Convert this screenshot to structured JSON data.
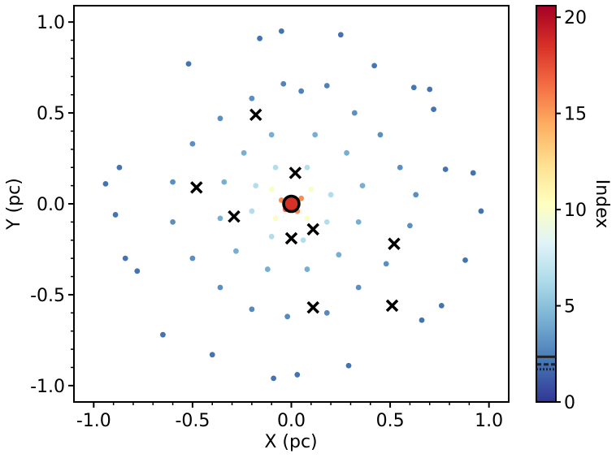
{
  "chart_data": {
    "type": "scatter",
    "title": "",
    "xlabel": "X (pc)",
    "ylabel": "Y (pc)",
    "xlim": [
      -1.1,
      1.1
    ],
    "ylim": [
      -1.09,
      1.09
    ],
    "x_ticks": [
      -1.0,
      -0.5,
      0.0,
      0.5,
      1.0
    ],
    "x_tick_labels": [
      "-1.0",
      "-0.5",
      "0.0",
      "0.5",
      "1.0"
    ],
    "y_ticks": [
      -1.0,
      -0.5,
      0.0,
      0.5,
      1.0
    ],
    "y_tick_labels": [
      "-1.0",
      "-0.5",
      "0.0",
      "0.5",
      "1.0"
    ],
    "grid": false,
    "point_color_scale": "RdYlBu_r (color = Index)",
    "colorbar": {
      "label": "Index",
      "range": [
        0,
        20.6
      ],
      "ticks": [
        0,
        5,
        10,
        15,
        20
      ],
      "tick_labels": [
        "0",
        "5",
        "10",
        "15",
        "20"
      ],
      "reference_lines": [
        {
          "value": 2.35,
          "style": "solid"
        },
        {
          "value": 1.95,
          "style": "dashed"
        },
        {
          "value": 1.7,
          "style": "dotted"
        }
      ]
    },
    "cross_markers": [
      {
        "x": 0.02,
        "y": 0.17
      },
      {
        "x": -0.18,
        "y": 0.49
      },
      {
        "x": -0.48,
        "y": 0.09
      },
      {
        "x": -0.29,
        "y": -0.07
      },
      {
        "x": 0.0,
        "y": -0.19
      },
      {
        "x": 0.11,
        "y": -0.14
      },
      {
        "x": 0.52,
        "y": -0.22
      },
      {
        "x": 0.51,
        "y": -0.56
      },
      {
        "x": 0.11,
        "y": -0.57
      }
    ],
    "central_marker": {
      "x": 0.0,
      "y": 0.0,
      "symbol": "circle",
      "fill": "#d73027"
    },
    "point_cloud_note": "about 900 points scattered in a disk of radius about 1 pc; Index decreases with distance from the centre",
    "points": [
      {
        "x": 0.62,
        "y": 0.64,
        "index": 2.1
      },
      {
        "x": 0.7,
        "y": 0.63,
        "index": 2.0
      },
      {
        "x": 0.42,
        "y": 0.76,
        "index": 2.1
      },
      {
        "x": -0.16,
        "y": 0.91,
        "index": 2.0
      },
      {
        "x": -0.05,
        "y": 0.95,
        "index": 2.0
      },
      {
        "x": 0.25,
        "y": 0.93,
        "index": 2.0
      },
      {
        "x": -0.52,
        "y": 0.77,
        "index": 2.0
      },
      {
        "x": -0.87,
        "y": 0.2,
        "index": 2.0
      },
      {
        "x": -0.94,
        "y": 0.11,
        "index": 2.0
      },
      {
        "x": -0.89,
        "y": -0.06,
        "index": 2.0
      },
      {
        "x": -0.84,
        "y": -0.3,
        "index": 2.0
      },
      {
        "x": -0.78,
        "y": -0.37,
        "index": 2.0
      },
      {
        "x": -0.65,
        "y": -0.72,
        "index": 2.0
      },
      {
        "x": -0.4,
        "y": -0.83,
        "index": 2.0
      },
      {
        "x": -0.09,
        "y": -0.96,
        "index": 2.0
      },
      {
        "x": 0.03,
        "y": -0.94,
        "index": 2.0
      },
      {
        "x": 0.29,
        "y": -0.89,
        "index": 2.0
      },
      {
        "x": 0.66,
        "y": -0.64,
        "index": 2.0
      },
      {
        "x": 0.76,
        "y": -0.56,
        "index": 2.0
      },
      {
        "x": 0.88,
        "y": -0.31,
        "index": 2.0
      },
      {
        "x": 0.96,
        "y": -0.04,
        "index": 2.0
      },
      {
        "x": 0.92,
        "y": 0.17,
        "index": 2.0
      },
      {
        "x": 0.78,
        "y": 0.19,
        "index": 2.0
      },
      {
        "x": 0.72,
        "y": 0.52,
        "index": 2.0
      },
      {
        "x": 0.05,
        "y": 0.62,
        "index": 2.5
      },
      {
        "x": -0.04,
        "y": 0.66,
        "index": 2.6
      },
      {
        "x": 0.18,
        "y": 0.65,
        "index": 2.5
      },
      {
        "x": 0.32,
        "y": 0.5,
        "index": 3.0
      },
      {
        "x": 0.45,
        "y": 0.38,
        "index": 3.0
      },
      {
        "x": 0.55,
        "y": 0.2,
        "index": 3.0
      },
      {
        "x": 0.63,
        "y": 0.05,
        "index": 3.0
      },
      {
        "x": 0.6,
        "y": -0.12,
        "index": 3.0
      },
      {
        "x": 0.48,
        "y": -0.33,
        "index": 3.0
      },
      {
        "x": 0.34,
        "y": -0.46,
        "index": 3.0
      },
      {
        "x": 0.18,
        "y": -0.6,
        "index": 2.8
      },
      {
        "x": -0.02,
        "y": -0.62,
        "index": 2.8
      },
      {
        "x": -0.2,
        "y": -0.58,
        "index": 2.8
      },
      {
        "x": -0.36,
        "y": -0.46,
        "index": 3.0
      },
      {
        "x": -0.5,
        "y": -0.3,
        "index": 3.0
      },
      {
        "x": -0.6,
        "y": -0.1,
        "index": 3.0
      },
      {
        "x": -0.6,
        "y": 0.12,
        "index": 3.0
      },
      {
        "x": -0.5,
        "y": 0.33,
        "index": 3.0
      },
      {
        "x": -0.36,
        "y": 0.47,
        "index": 3.0
      },
      {
        "x": -0.2,
        "y": 0.58,
        "index": 3.0
      },
      {
        "x": 0.12,
        "y": 0.38,
        "index": 4.2
      },
      {
        "x": -0.1,
        "y": 0.38,
        "index": 4.2
      },
      {
        "x": 0.28,
        "y": 0.28,
        "index": 4.2
      },
      {
        "x": 0.36,
        "y": 0.1,
        "index": 4.2
      },
      {
        "x": 0.34,
        "y": -0.1,
        "index": 4.2
      },
      {
        "x": 0.24,
        "y": -0.28,
        "index": 4.2
      },
      {
        "x": 0.08,
        "y": -0.36,
        "index": 4.2
      },
      {
        "x": -0.12,
        "y": -0.36,
        "index": 4.2
      },
      {
        "x": -0.28,
        "y": -0.26,
        "index": 4.2
      },
      {
        "x": -0.36,
        "y": -0.08,
        "index": 4.2
      },
      {
        "x": -0.34,
        "y": 0.12,
        "index": 4.2
      },
      {
        "x": -0.24,
        "y": 0.28,
        "index": 4.2
      },
      {
        "x": 0.08,
        "y": 0.2,
        "index": 6.5
      },
      {
        "x": -0.08,
        "y": 0.2,
        "index": 6.5
      },
      {
        "x": 0.2,
        "y": 0.05,
        "index": 6.5
      },
      {
        "x": 0.18,
        "y": -0.1,
        "index": 6.5
      },
      {
        "x": 0.06,
        "y": -0.2,
        "index": 6.5
      },
      {
        "x": -0.1,
        "y": -0.18,
        "index": 6.5
      },
      {
        "x": -0.2,
        "y": -0.04,
        "index": 6.5
      },
      {
        "x": -0.18,
        "y": 0.1,
        "index": 6.5
      },
      {
        "x": 0.1,
        "y": 0.08,
        "index": 10.0
      },
      {
        "x": -0.1,
        "y": 0.08,
        "index": 10.0
      },
      {
        "x": 0.08,
        "y": -0.08,
        "index": 10.0
      },
      {
        "x": -0.08,
        "y": -0.08,
        "index": 10.0
      },
      {
        "x": 0.05,
        "y": 0.03,
        "index": 15.5
      },
      {
        "x": -0.05,
        "y": 0.02,
        "index": 15.5
      },
      {
        "x": 0.03,
        "y": -0.04,
        "index": 15.5
      },
      {
        "x": -0.03,
        "y": -0.03,
        "index": 16.5
      }
    ]
  }
}
